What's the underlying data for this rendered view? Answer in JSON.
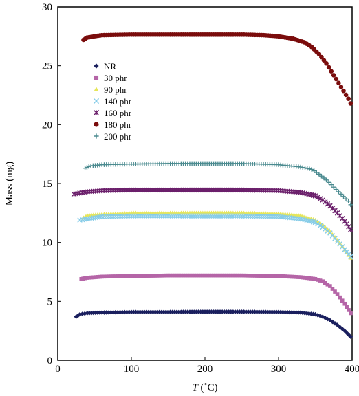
{
  "chart_data": {
    "type": "scatter",
    "title": "",
    "xlabel_italic": "T",
    "xlabel_unit": " (˚C)",
    "ylabel": "Mass (mg)",
    "xlim": [
      0,
      400
    ],
    "ylim": [
      0,
      30
    ],
    "xticks": [
      0,
      100,
      200,
      300,
      400
    ],
    "yticks": [
      0,
      5,
      10,
      15,
      20,
      25,
      30
    ],
    "grid": false,
    "legend_position": "top-left inside",
    "series": [
      {
        "name": "NR",
        "marker": "diamond",
        "color": "#1a1f5e",
        "points": [
          [
            25,
            3.7
          ],
          [
            30,
            3.9
          ],
          [
            40,
            4.0
          ],
          [
            60,
            4.05
          ],
          [
            100,
            4.1
          ],
          [
            150,
            4.1
          ],
          [
            200,
            4.12
          ],
          [
            250,
            4.12
          ],
          [
            300,
            4.1
          ],
          [
            330,
            4.05
          ],
          [
            350,
            3.9
          ],
          [
            360,
            3.7
          ],
          [
            370,
            3.4
          ],
          [
            380,
            3.0
          ],
          [
            390,
            2.5
          ],
          [
            398,
            2.0
          ]
        ]
      },
      {
        "name": "30 phr",
        "marker": "square",
        "color": "#b565a7",
        "points": [
          [
            32,
            6.9
          ],
          [
            40,
            7.0
          ],
          [
            60,
            7.1
          ],
          [
            100,
            7.15
          ],
          [
            150,
            7.2
          ],
          [
            200,
            7.2
          ],
          [
            250,
            7.2
          ],
          [
            300,
            7.15
          ],
          [
            330,
            7.05
          ],
          [
            350,
            6.9
          ],
          [
            360,
            6.7
          ],
          [
            370,
            6.3
          ],
          [
            380,
            5.6
          ],
          [
            390,
            4.8
          ],
          [
            398,
            4.0
          ]
        ]
      },
      {
        "name": "90 phr",
        "marker": "triangle",
        "color": "#e6e65a",
        "points": [
          [
            35,
            12.1
          ],
          [
            40,
            12.3
          ],
          [
            60,
            12.4
          ],
          [
            100,
            12.5
          ],
          [
            150,
            12.5
          ],
          [
            200,
            12.5
          ],
          [
            250,
            12.5
          ],
          [
            300,
            12.45
          ],
          [
            330,
            12.3
          ],
          [
            350,
            11.9
          ],
          [
            360,
            11.5
          ],
          [
            370,
            10.9
          ],
          [
            380,
            10.2
          ],
          [
            390,
            9.4
          ],
          [
            398,
            8.7
          ]
        ]
      },
      {
        "name": "140 phr",
        "marker": "x",
        "color": "#86cce8",
        "points": [
          [
            30,
            11.9
          ],
          [
            40,
            12.0
          ],
          [
            60,
            12.2
          ],
          [
            100,
            12.25
          ],
          [
            150,
            12.25
          ],
          [
            200,
            12.25
          ],
          [
            250,
            12.25
          ],
          [
            300,
            12.2
          ],
          [
            330,
            12.0
          ],
          [
            350,
            11.7
          ],
          [
            360,
            11.3
          ],
          [
            370,
            10.8
          ],
          [
            380,
            10.1
          ],
          [
            390,
            9.4
          ],
          [
            398,
            8.8
          ]
        ]
      },
      {
        "name": "160 phr",
        "marker": "star",
        "color": "#6b1f6b",
        "points": [
          [
            22,
            14.1
          ],
          [
            30,
            14.2
          ],
          [
            40,
            14.3
          ],
          [
            60,
            14.4
          ],
          [
            100,
            14.45
          ],
          [
            150,
            14.45
          ],
          [
            200,
            14.45
          ],
          [
            250,
            14.45
          ],
          [
            300,
            14.4
          ],
          [
            330,
            14.25
          ],
          [
            350,
            13.95
          ],
          [
            360,
            13.6
          ],
          [
            370,
            13.1
          ],
          [
            380,
            12.5
          ],
          [
            390,
            11.8
          ],
          [
            398,
            11.1
          ]
        ]
      },
      {
        "name": "180 phr",
        "marker": "circle",
        "color": "#7a0c0c",
        "points": [
          [
            35,
            27.2
          ],
          [
            40,
            27.4
          ],
          [
            60,
            27.6
          ],
          [
            100,
            27.65
          ],
          [
            150,
            27.65
          ],
          [
            200,
            27.65
          ],
          [
            250,
            27.65
          ],
          [
            280,
            27.6
          ],
          [
            300,
            27.5
          ],
          [
            320,
            27.3
          ],
          [
            335,
            27.0
          ],
          [
            345,
            26.6
          ],
          [
            355,
            26.0
          ],
          [
            365,
            25.2
          ],
          [
            375,
            24.2
          ],
          [
            385,
            23.2
          ],
          [
            395,
            22.2
          ],
          [
            398,
            21.8
          ]
        ]
      },
      {
        "name": "200 phr",
        "marker": "plus",
        "color": "#4a8a8f",
        "points": [
          [
            37,
            16.3
          ],
          [
            45,
            16.5
          ],
          [
            60,
            16.6
          ],
          [
            100,
            16.65
          ],
          [
            150,
            16.7
          ],
          [
            200,
            16.7
          ],
          [
            250,
            16.7
          ],
          [
            300,
            16.6
          ],
          [
            330,
            16.4
          ],
          [
            345,
            16.2
          ],
          [
            355,
            15.8
          ],
          [
            365,
            15.3
          ],
          [
            375,
            14.7
          ],
          [
            385,
            14.1
          ],
          [
            395,
            13.5
          ],
          [
            398,
            13.2
          ]
        ]
      }
    ]
  }
}
